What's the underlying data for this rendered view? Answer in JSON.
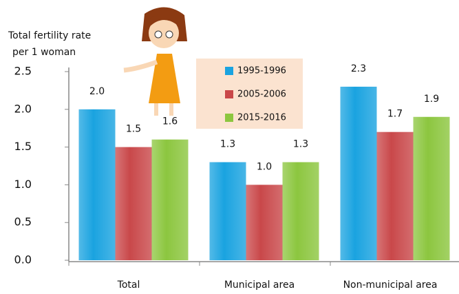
{
  "chart_data": {
    "type": "bar",
    "y_label": [
      "Total fertility rate",
      "per 1 woman"
    ],
    "categories": [
      "Total",
      "Municipal area",
      "Non-municipal area"
    ],
    "series": [
      {
        "name": "1995-1996",
        "color": "#1aa3e0",
        "values": [
          2.0,
          1.3,
          2.3
        ],
        "value_labels": [
          "2.0",
          "1.3",
          "2.3"
        ]
      },
      {
        "name": "2005-2006",
        "color": "#c9484a",
        "values": [
          1.5,
          1.0,
          1.7
        ],
        "value_labels": [
          "1.5",
          "1.0",
          "1.7"
        ]
      },
      {
        "name": "2015-2016",
        "color": "#8cc63f",
        "values": [
          1.6,
          1.3,
          1.9
        ],
        "value_labels": [
          "1.6",
          "1.3",
          "1.9"
        ]
      }
    ],
    "ylim": [
      0,
      2.5
    ],
    "yticks": [
      {
        "value": 0,
        "label": "0.0"
      },
      0.5,
      {
        "value": 1,
        "label": "1.0"
      },
      1.5,
      {
        "value": 2,
        "label": "2.0"
      },
      2.5
    ],
    "legend": "top-center"
  }
}
